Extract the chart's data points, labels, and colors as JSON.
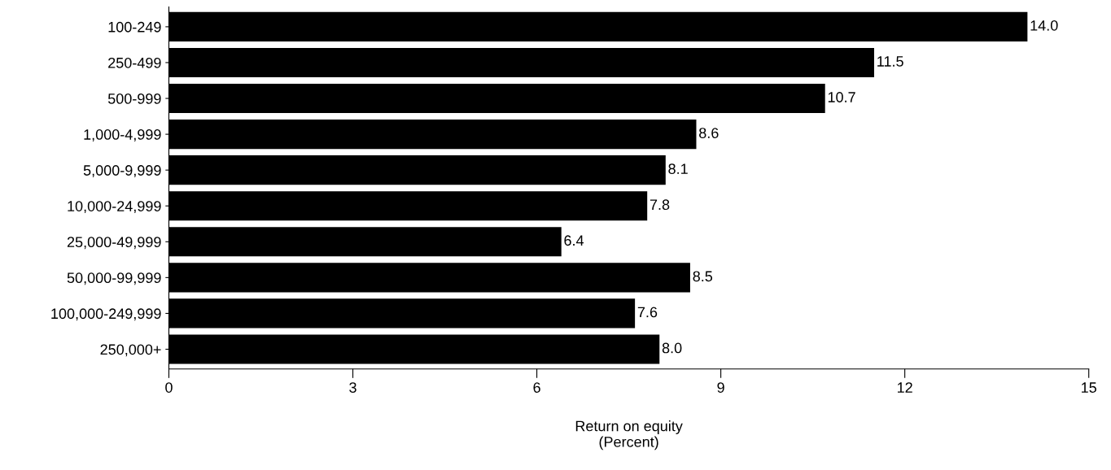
{
  "chart_data": {
    "type": "bar",
    "orientation": "horizontal",
    "categories": [
      "100-249",
      "250-499",
      "500-999",
      "1,000-4,999",
      "5,000-9,999",
      "10,000-24,999",
      "25,000-49,999",
      "50,000-99,999",
      "100,000-249,999",
      "250,000+"
    ],
    "values": [
      14.0,
      11.5,
      10.7,
      8.6,
      8.1,
      7.8,
      6.4,
      8.5,
      7.6,
      8.0
    ],
    "value_labels": [
      "14.0",
      "11.5",
      "10.7",
      "8.6",
      "8.1",
      "7.8",
      "6.4",
      "8.5",
      "7.6",
      "8.0"
    ],
    "color": "#000000",
    "xlabel": "Return on equity\n(Percent)",
    "xlim": [
      0,
      15
    ],
    "xticks": [
      0,
      3,
      6,
      9,
      12,
      15
    ],
    "grid": false
  }
}
